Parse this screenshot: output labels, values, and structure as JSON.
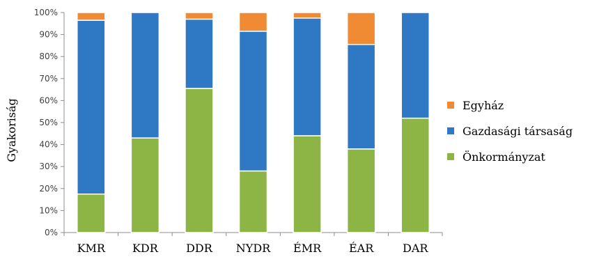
{
  "chart_data": {
    "type": "bar",
    "stacked": true,
    "title": "",
    "xlabel": "",
    "ylabel": "Gyakoriság",
    "ylim": [
      0,
      100
    ],
    "yticks": [
      "0%",
      "10%",
      "20%",
      "30%",
      "40%",
      "50%",
      "60%",
      "70%",
      "80%",
      "90%",
      "100%"
    ],
    "grid": false,
    "legend_position": "right",
    "categories": [
      "KMR",
      "KDR",
      "DDR",
      "NYDR",
      "ÉMR",
      "ÉAR",
      "DAR"
    ],
    "series": [
      {
        "name": "Önkormányzat",
        "color": "#8DB545",
        "values": [
          17.5,
          43,
          65.5,
          28,
          44,
          38,
          52
        ]
      },
      {
        "name": "Gazdasági társaság",
        "color": "#2F78C4",
        "values": [
          79,
          57,
          31.5,
          63.5,
          53.5,
          47.5,
          48
        ]
      },
      {
        "name": "Egyház",
        "color": "#F08B33",
        "values": [
          3.5,
          0,
          3,
          8.5,
          2.5,
          14.5,
          0
        ]
      }
    ],
    "legend_order": [
      "Egyház",
      "Gazdasági társaság",
      "Önkormányzat"
    ]
  }
}
